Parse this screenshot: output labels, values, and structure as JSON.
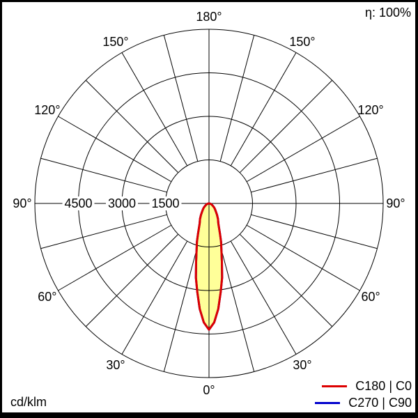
{
  "header": {
    "efficiency": "η: 100%"
  },
  "footer": {
    "unit": "cd/klm"
  },
  "legend": [
    {
      "label": "C180 | C0",
      "color": "#dd0000"
    },
    {
      "label": "C270 | C90",
      "color": "#0000cc"
    }
  ],
  "chart_data": {
    "type": "line",
    "subtype": "polar_luminous_intensity_distribution",
    "title": "",
    "units": "cd/klm",
    "efficiency": "η: 100%",
    "angle_label_ticks_deg": [
      0,
      30,
      60,
      90,
      120,
      150,
      180
    ],
    "angle_grid_step_deg": 15,
    "radial_ticks": [
      1500,
      3000,
      4500
    ],
    "radial_tick_labels": [
      "1500",
      "3000",
      "4500"
    ],
    "radial_max": 6000,
    "grid_color": "#000000",
    "fill_color": "#ffff99",
    "symmetric_about_vertical_axis": true,
    "angles_deg": [
      0,
      2.5,
      5,
      7.5,
      10,
      12.5,
      15,
      17.5,
      20,
      25,
      30,
      35,
      40,
      45,
      50,
      55,
      60,
      65,
      70,
      75,
      80,
      85,
      90
    ],
    "series": [
      {
        "name": "C180 | C0",
        "color": "#dd0000",
        "values": [
          4350,
          4100,
          3650,
          3080,
          2600,
          2050,
          1650,
          1380,
          1100,
          760,
          620,
          480,
          375,
          300,
          240,
          185,
          140,
          105,
          80,
          60,
          40,
          20,
          0
        ]
      },
      {
        "name": "C270 | C90",
        "color": "#0000cc",
        "values": [
          4350,
          4100,
          3650,
          3080,
          2600,
          2050,
          1650,
          1380,
          1100,
          760,
          620,
          480,
          375,
          300,
          240,
          185,
          140,
          105,
          80,
          60,
          40,
          20,
          0
        ],
        "note": "coincides with C180 | C0, hidden beneath red curve"
      }
    ],
    "peak_intensity_cd_per_klm": 4350,
    "peak_angle_deg": 0
  }
}
